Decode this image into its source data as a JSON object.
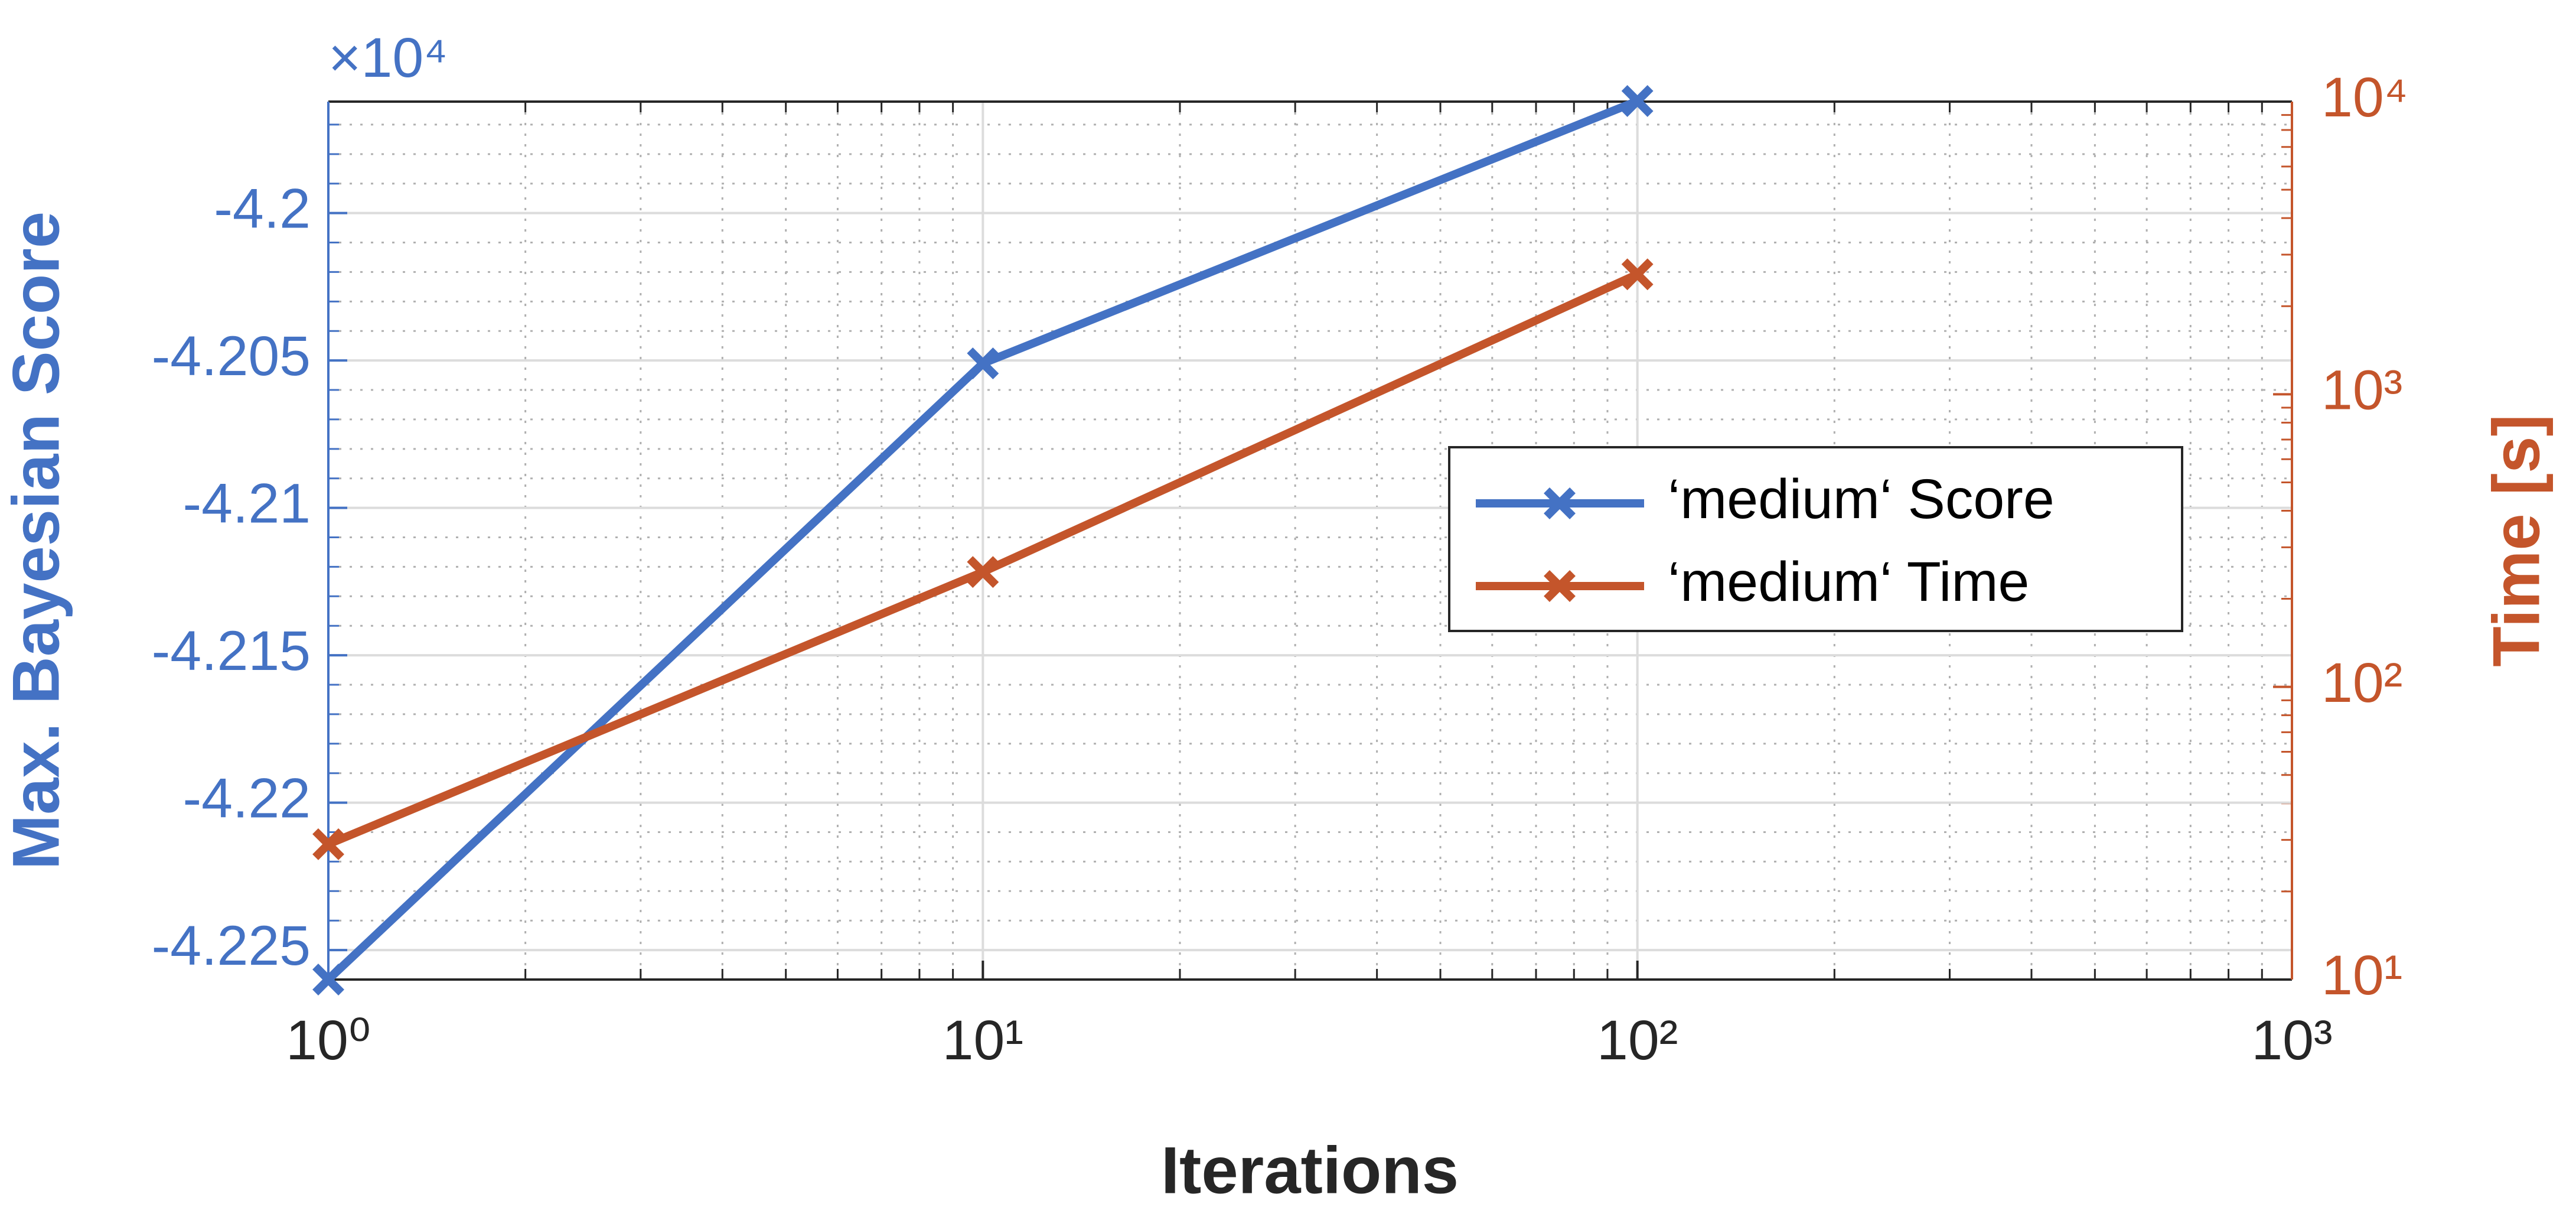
{
  "chart_data": {
    "type": "line",
    "x_label": "Iterations",
    "y_label": "Max. Bayesian Score",
    "y2_label": "Time [s]",
    "y_multiplier": "×10⁴",
    "x": [
      1,
      10,
      100
    ],
    "xscale": "log",
    "xlim": [
      1,
      1000
    ],
    "xticks": [
      {
        "value": 1,
        "label": "10⁰"
      },
      {
        "value": 10,
        "label": "10¹"
      },
      {
        "value": 100,
        "label": "10²"
      },
      {
        "value": 1000,
        "label": "10³"
      }
    ],
    "ylim": [
      -4.226,
      -4.19622
    ],
    "yticks": [
      -4.225,
      -4.22,
      -4.215,
      -4.21,
      -4.205,
      -4.2
    ],
    "y2scale": "log",
    "y2lim": [
      10,
      10000
    ],
    "y2ticks": [
      {
        "value": 10,
        "label": "10¹"
      },
      {
        "value": 100,
        "label": "10²"
      },
      {
        "value": 1000,
        "label": "10³"
      },
      {
        "value": 10000,
        "label": "10⁴"
      }
    ],
    "grid": true,
    "minor_grid": true,
    "legend": "center-right",
    "series": [
      {
        "name": "‘medium‘ Score",
        "color": "#4472c4",
        "values": [
          -4.226,
          -4.2051,
          -4.1962
        ],
        "axis": "y"
      },
      {
        "name": "‘medium‘ Time",
        "color": "#c4552b",
        "values": [
          29,
          247,
          2570
        ],
        "axis": "y2"
      }
    ]
  }
}
